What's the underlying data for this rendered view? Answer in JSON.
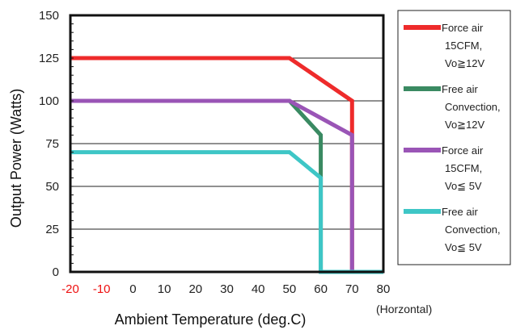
{
  "chart_data": {
    "type": "line",
    "xlabel": "Ambient Temperature (deg.C)",
    "ylabel": "Output Power (Watts)",
    "x_note": "(Horzontal)",
    "xlim": [
      -20,
      80
    ],
    "ylim": [
      0,
      150
    ],
    "x_ticks": [
      {
        "value": -20,
        "label": "-20",
        "color": "#ee1111"
      },
      {
        "value": -10,
        "label": "-10",
        "color": "#ee1111"
      },
      {
        "value": 0,
        "label": "0",
        "color": "#222222"
      },
      {
        "value": 10,
        "label": "10",
        "color": "#222222"
      },
      {
        "value": 20,
        "label": "20",
        "color": "#222222"
      },
      {
        "value": 30,
        "label": "30",
        "color": "#222222"
      },
      {
        "value": 40,
        "label": "40",
        "color": "#222222"
      },
      {
        "value": 50,
        "label": "50",
        "color": "#222222"
      },
      {
        "value": 60,
        "label": "60",
        "color": "#222222"
      },
      {
        "value": 70,
        "label": "70",
        "color": "#222222"
      },
      {
        "value": 80,
        "label": "80",
        "color": "#222222"
      }
    ],
    "y_ticks": [
      {
        "value": 0,
        "label": "0"
      },
      {
        "value": 25,
        "label": "25"
      },
      {
        "value": 50,
        "label": "50"
      },
      {
        "value": 75,
        "label": "75"
      },
      {
        "value": 100,
        "label": "100"
      },
      {
        "value": 125,
        "label": "125"
      },
      {
        "value": 150,
        "label": "150"
      }
    ],
    "grid": "horizontal",
    "legend_position": "right",
    "series": [
      {
        "name": "Force air 15CFM, Vo≧12V",
        "legend_lines": [
          "Force air",
          "15CFM,",
          "Vo≧12V"
        ],
        "color": "#ee2b2b",
        "points": [
          [
            -20,
            125
          ],
          [
            50,
            125
          ],
          [
            70,
            100
          ],
          [
            70,
            0
          ]
        ]
      },
      {
        "name": "Free air Convection, Vo≧12V",
        "legend_lines": [
          "Free air",
          "Convection,",
          "Vo≧12V"
        ],
        "color": "#3a8a62",
        "points": [
          [
            -20,
            100
          ],
          [
            50,
            100
          ],
          [
            60,
            80
          ],
          [
            60,
            0
          ]
        ]
      },
      {
        "name": "Force air 15CFM, Vo≦ 5V",
        "legend_lines": [
          "Force air",
          "15CFM,",
          "Vo≦ 5V"
        ],
        "color": "#9a55b6",
        "points": [
          [
            -20,
            100
          ],
          [
            50,
            100
          ],
          [
            70,
            80
          ],
          [
            70,
            0
          ]
        ]
      },
      {
        "name": "Free air Convection, Vo≦ 5V",
        "legend_lines": [
          "Free air",
          "Convection,",
          "Vo≦ 5V"
        ],
        "color": "#3ec6c6",
        "points": [
          [
            -20,
            70
          ],
          [
            50,
            70
          ],
          [
            60,
            55
          ],
          [
            60,
            0
          ],
          [
            80,
            0
          ]
        ]
      }
    ]
  }
}
